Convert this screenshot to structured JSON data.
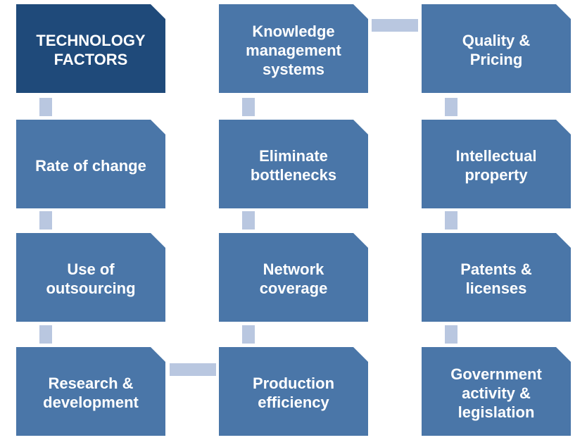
{
  "diagram": {
    "columns": [
      {
        "boxes": [
          {
            "label": "TECHNOLOGY\nFACTORS"
          },
          {
            "label": "Rate of change"
          },
          {
            "label": "Use of\noutsourcing"
          },
          {
            "label": "Research &\ndevelopment"
          }
        ]
      },
      {
        "boxes": [
          {
            "label": "Knowledge\nmanagement\nsystems"
          },
          {
            "label": "Eliminate\nbottlenecks"
          },
          {
            "label": "Network\ncoverage"
          },
          {
            "label": "Production\nefficiency"
          }
        ]
      },
      {
        "boxes": [
          {
            "label": "Quality &\nPricing"
          },
          {
            "label": "Intellectual\nproperty"
          },
          {
            "label": "Patents &\nlicenses"
          },
          {
            "label": "Government\nactivity &\nlegislation"
          }
        ]
      }
    ],
    "colors": {
      "box": "#4a76a8",
      "title_box": "#1f4a7a",
      "connector": "#b9c7e0",
      "text": "#ffffff"
    }
  }
}
